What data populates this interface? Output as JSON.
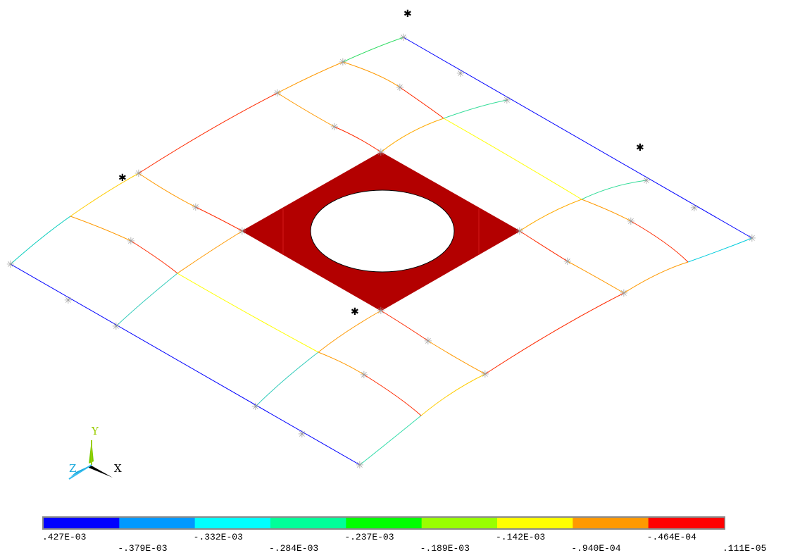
{
  "axis_triad": {
    "x_label": "X",
    "y_label": "Y",
    "z_label": "Z"
  },
  "legend": {
    "colors": [
      "#0000ff",
      "#0099ff",
      "#00ffff",
      "#00ff99",
      "#00ff00",
      "#99ff00",
      "#ffff00",
      "#ff9900",
      "#ff0000"
    ],
    "labels": [
      ".427E-03",
      "-.379E-03",
      "-.332E-03",
      "-.284E-03",
      "-.237E-03",
      "-.189E-03",
      "-.142E-03",
      "-.940E-04",
      "-.464E-04",
      ".111E-05"
    ]
  },
  "markers": {
    "star_symbol": "✱",
    "node_symbol": "✳"
  },
  "colors": {
    "plate_fill": "#b30000",
    "hole_fill": "#ffffff",
    "node_color": "#9a9a9a"
  }
}
